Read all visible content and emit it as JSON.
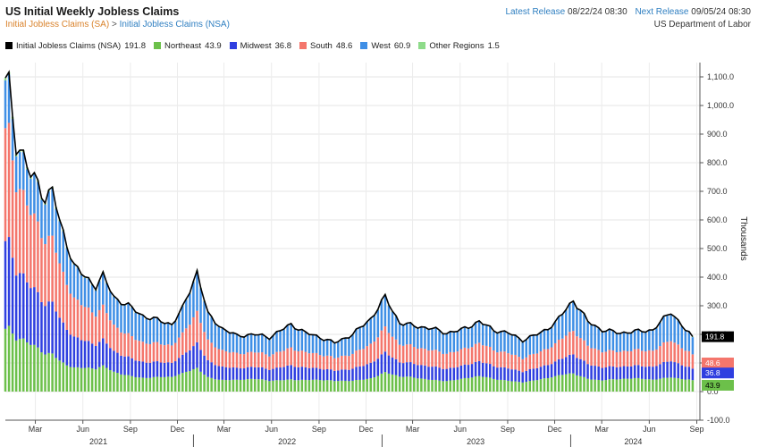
{
  "header": {
    "title": "US Initial Weekly Jobless Claims",
    "subtitle_sa": "Initial Jobless Claims (SA)",
    "subtitle_sep": ">",
    "subtitle_nsa": "Initial Jobless Claims (NSA)",
    "latest_label": "Latest Release",
    "latest_value": "08/22/24 08:30",
    "next_label": "Next Release",
    "next_value": "09/05/24 08:30",
    "source": "US Department of Labor"
  },
  "legend": [
    {
      "label": "Initial Jobless Claims (NSA)",
      "value": "191.8",
      "color": "#000000"
    },
    {
      "label": "Northeast",
      "value": "43.9",
      "color": "#6cc04a"
    },
    {
      "label": "Midwest",
      "value": "36.8",
      "color": "#2f3fe0"
    },
    {
      "label": "South",
      "value": "48.6",
      "color": "#f4766c"
    },
    {
      "label": "West",
      "value": "60.9",
      "color": "#3f8fe6"
    },
    {
      "label": "Other Regions",
      "value": "1.5",
      "color": "#8edb8a"
    }
  ],
  "chart_data": {
    "type": "bar",
    "stacked": true,
    "ylabel": "Thousands",
    "ylim": [
      -100,
      1150
    ],
    "yticks": [
      "-100.0",
      "0.0",
      "100.0",
      "200.0",
      "300.0",
      "400.0",
      "500.0",
      "600.0",
      "700.0",
      "800.0",
      "900.0",
      "1,000.0",
      "1,100.0"
    ],
    "x_start": "2021-01-02",
    "x_end": "2024-09-07",
    "month_ticks": [
      {
        "date": "2021-03-01",
        "label": "Mar"
      },
      {
        "date": "2021-06-01",
        "label": "Jun"
      },
      {
        "date": "2021-09-01",
        "label": "Sep"
      },
      {
        "date": "2021-12-01",
        "label": "Dec"
      },
      {
        "date": "2022-03-01",
        "label": "Mar"
      },
      {
        "date": "2022-06-01",
        "label": "Jun"
      },
      {
        "date": "2022-09-01",
        "label": "Sep"
      },
      {
        "date": "2022-12-01",
        "label": "Dec"
      },
      {
        "date": "2023-03-01",
        "label": "Mar"
      },
      {
        "date": "2023-06-01",
        "label": "Jun"
      },
      {
        "date": "2023-09-01",
        "label": "Sep"
      },
      {
        "date": "2023-12-01",
        "label": "Dec"
      },
      {
        "date": "2024-03-01",
        "label": "Mar"
      },
      {
        "date": "2024-06-01",
        "label": "Jun"
      },
      {
        "date": "2024-09-01",
        "label": "Sep"
      }
    ],
    "years": [
      {
        "label": "2021",
        "mid": "2021-07-01"
      },
      {
        "label": "2022",
        "mid": "2022-07-01"
      },
      {
        "label": "2023",
        "mid": "2023-07-01"
      },
      {
        "label": "2024",
        "mid": "2024-05-01"
      }
    ],
    "total_anchors": [
      [
        "2021-01-09",
        1080
      ],
      [
        "2021-01-23",
        860
      ],
      [
        "2021-02-06",
        830
      ],
      [
        "2021-02-20",
        750
      ],
      [
        "2021-03-06",
        735
      ],
      [
        "2021-03-20",
        670
      ],
      [
        "2021-04-03",
        710
      ],
      [
        "2021-04-17",
        590
      ],
      [
        "2021-05-01",
        520
      ],
      [
        "2021-05-15",
        440
      ],
      [
        "2021-06-05",
        400
      ],
      [
        "2021-06-26",
        370
      ],
      [
        "2021-07-10",
        405
      ],
      [
        "2021-07-31",
        330
      ],
      [
        "2021-08-28",
        300
      ],
      [
        "2021-09-25",
        265
      ],
      [
        "2021-10-23",
        250
      ],
      [
        "2021-11-20",
        235
      ],
      [
        "2021-12-11",
        290
      ],
      [
        "2022-01-08",
        420
      ],
      [
        "2022-01-29",
        270
      ],
      [
        "2022-02-26",
        220
      ],
      [
        "2022-03-26",
        195
      ],
      [
        "2022-04-30",
        200
      ],
      [
        "2022-05-28",
        190
      ],
      [
        "2022-07-09",
        235
      ],
      [
        "2022-08-06",
        205
      ],
      [
        "2022-09-03",
        190
      ],
      [
        "2022-10-01",
        170
      ],
      [
        "2022-11-05",
        200
      ],
      [
        "2022-12-10",
        255
      ],
      [
        "2023-01-07",
        330
      ],
      [
        "2023-02-04",
        240
      ],
      [
        "2023-03-04",
        230
      ],
      [
        "2023-04-08",
        220
      ],
      [
        "2023-05-06",
        205
      ],
      [
        "2023-06-03",
        215
      ],
      [
        "2023-07-08",
        245
      ],
      [
        "2023-08-05",
        215
      ],
      [
        "2023-09-02",
        205
      ],
      [
        "2023-09-30",
        180
      ],
      [
        "2023-11-04",
        205
      ],
      [
        "2023-12-02",
        240
      ],
      [
        "2024-01-06",
        320
      ],
      [
        "2024-02-03",
        245
      ],
      [
        "2024-03-02",
        215
      ],
      [
        "2024-04-06",
        205
      ],
      [
        "2024-05-04",
        210
      ],
      [
        "2024-06-08",
        215
      ],
      [
        "2024-07-13",
        280
      ],
      [
        "2024-08-10",
        215
      ],
      [
        "2024-08-24",
        191.8
      ]
    ],
    "series": [
      {
        "name": "Northeast",
        "color": "#6cc04a",
        "latest": 43.9
      },
      {
        "name": "Midwest",
        "color": "#2f3fe0",
        "latest": 36.8
      },
      {
        "name": "South",
        "color": "#f4766c",
        "latest": 48.6
      },
      {
        "name": "West",
        "color": "#3f8fe6",
        "latest": 60.9
      },
      {
        "name": "Other Regions",
        "color": "#8edb8a",
        "latest": 1.5
      }
    ],
    "last_values": [
      {
        "value": "191.8",
        "bg": "#000000",
        "fg": "#ffffff",
        "v": 191.8
      },
      {
        "value": "48.6",
        "bg": "#f4766c",
        "fg": "#ffffff",
        "v": 100
      },
      {
        "value": "36.8",
        "bg": "#2f3fe0",
        "fg": "#ffffff",
        "v": 65
      },
      {
        "value": "43.9",
        "bg": "#6cc04a",
        "fg": "#000000",
        "v": 22
      }
    ]
  }
}
